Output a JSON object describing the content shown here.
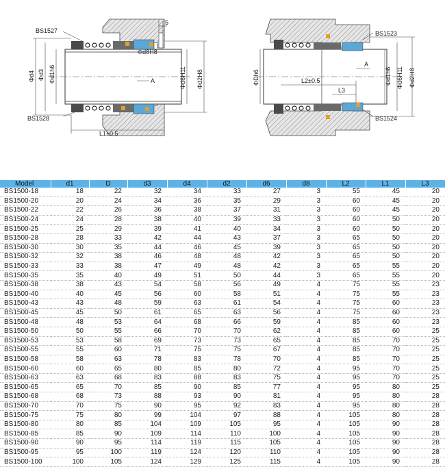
{
  "drawing": {
    "left": {
      "part_top": "BS1527",
      "part_bottom": "BS1528",
      "dim_5": "5",
      "d4": "Φd4",
      "d3": "Φd3",
      "d1": "Φd1h6",
      "d8": "Φd8H8",
      "d6": "Φd6H11",
      "d2": "Φd2H8",
      "arrow": "A",
      "l1": "L1±0.5"
    },
    "right": {
      "part_top": "BS1523",
      "part_bottom": "BS1524",
      "dh": "ΦDh6",
      "d1": "Φd1h6",
      "d6": "Φd6H11",
      "d2": "Φd2H8",
      "arrow": "A",
      "l2": "L2±0.5",
      "l3": "L3"
    }
  },
  "table": {
    "headers": [
      "Model",
      "d1",
      "D",
      "d3",
      "d4",
      "d2",
      "d6",
      "d8",
      "L2",
      "L1",
      "L3"
    ],
    "rows": [
      [
        "BS1500-18",
        "18",
        "22",
        "32",
        "34",
        "33",
        "27",
        "3",
        "55",
        "45",
        "20"
      ],
      [
        "BS1500-20",
        "20",
        "24",
        "34",
        "36",
        "35",
        "29",
        "3",
        "60",
        "45",
        "20"
      ],
      [
        "BS1500-22",
        "22",
        "26",
        "36",
        "38",
        "37",
        "31",
        "3",
        "60",
        "45",
        "20"
      ],
      [
        "BS1500-24",
        "24",
        "28",
        "38",
        "40",
        "39",
        "33",
        "3",
        "60",
        "50",
        "20"
      ],
      [
        "BS1500-25",
        "25",
        "29",
        "39",
        "41",
        "40",
        "34",
        "3",
        "60",
        "50",
        "20"
      ],
      [
        "BS1500-28",
        "28",
        "33",
        "42",
        "44",
        "43",
        "37",
        "3",
        "65",
        "50",
        "20"
      ],
      [
        "BS1500-30",
        "30",
        "35",
        "44",
        "46",
        "45",
        "39",
        "3",
        "65",
        "50",
        "20"
      ],
      [
        "BS1500-32",
        "32",
        "38",
        "46",
        "48",
        "48",
        "42",
        "3",
        "65",
        "50",
        "20"
      ],
      [
        "BS1500-33",
        "33",
        "38",
        "47",
        "49",
        "48",
        "42",
        "3",
        "65",
        "55",
        "20"
      ],
      [
        "BS1500-35",
        "35",
        "40",
        "49",
        "51",
        "50",
        "44",
        "3",
        "65",
        "55",
        "20"
      ],
      [
        "BS1500-38",
        "38",
        "43",
        "54",
        "58",
        "56",
        "49",
        "4",
        "75",
        "55",
        "23"
      ],
      [
        "BS1500-40",
        "40",
        "45",
        "56",
        "60",
        "58",
        "51",
        "4",
        "75",
        "55",
        "23"
      ],
      [
        "BS1500-43",
        "43",
        "48",
        "59",
        "63",
        "61",
        "54",
        "4",
        "75",
        "60",
        "23"
      ],
      [
        "BS1500-45",
        "45",
        "50",
        "61",
        "65",
        "63",
        "56",
        "4",
        "75",
        "60",
        "23"
      ],
      [
        "BS1500-48",
        "48",
        "53",
        "64",
        "68",
        "66",
        "59",
        "4",
        "85",
        "60",
        "23"
      ],
      [
        "BS1500-50",
        "50",
        "55",
        "66",
        "70",
        "70",
        "62",
        "4",
        "85",
        "60",
        "25"
      ],
      [
        "BS1500-53",
        "53",
        "58",
        "69",
        "73",
        "73",
        "65",
        "4",
        "85",
        "70",
        "25"
      ],
      [
        "BS1500-55",
        "55",
        "60",
        "71",
        "75",
        "75",
        "67",
        "4",
        "85",
        "70",
        "25"
      ],
      [
        "BS1500-58",
        "58",
        "63",
        "78",
        "83",
        "78",
        "70",
        "4",
        "85",
        "70",
        "25"
      ],
      [
        "BS1500-60",
        "60",
        "65",
        "80",
        "85",
        "80",
        "72",
        "4",
        "95",
        "70",
        "25"
      ],
      [
        "BS1500-63",
        "63",
        "68",
        "83",
        "88",
        "83",
        "75",
        "4",
        "95",
        "70",
        "25"
      ],
      [
        "BS1500-65",
        "65",
        "70",
        "85",
        "90",
        "85",
        "77",
        "4",
        "95",
        "80",
        "25"
      ],
      [
        "BS1500-68",
        "68",
        "73",
        "88",
        "93",
        "90",
        "81",
        "4",
        "95",
        "80",
        "28"
      ],
      [
        "BS1500-70",
        "70",
        "75",
        "90",
        "95",
        "92",
        "83",
        "4",
        "95",
        "80",
        "28"
      ],
      [
        "BS1500-75",
        "75",
        "80",
        "99",
        "104",
        "97",
        "88",
        "4",
        "105",
        "80",
        "28"
      ],
      [
        "BS1500-80",
        "80",
        "85",
        "104",
        "109",
        "105",
        "95",
        "4",
        "105",
        "90",
        "28"
      ],
      [
        "BS1500-85",
        "85",
        "90",
        "109",
        "114",
        "110",
        "100",
        "4",
        "105",
        "90",
        "28"
      ],
      [
        "BS1500-90",
        "90",
        "95",
        "114",
        "119",
        "115",
        "105",
        "4",
        "105",
        "90",
        "28"
      ],
      [
        "BS1500-95",
        "95",
        "100",
        "119",
        "124",
        "120",
        "110",
        "4",
        "105",
        "90",
        "28"
      ],
      [
        "BS1500-100",
        "100",
        "105",
        "124",
        "129",
        "125",
        "115",
        "4",
        "105",
        "90",
        "28"
      ]
    ]
  }
}
